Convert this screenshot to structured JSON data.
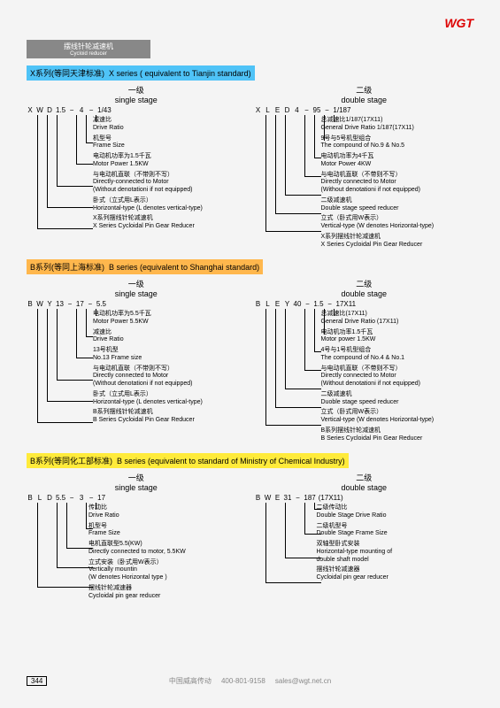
{
  "logo": "WGT",
  "header": {
    "cn": "摆线针轮减速机",
    "en": "Cycloid reducer"
  },
  "sections": [
    {
      "title_cn": "X系列(等同天津标准)",
      "title_en": "X series ( equivalent to Tianjin standard)",
      "bg": "bg-blue",
      "cols": [
        {
          "stage_cn": "一级",
          "stage_en": "single stage",
          "code": [
            "X",
            "W",
            "D",
            "1.5",
            "−",
            "4",
            "−",
            "1/43"
          ],
          "items": [
            {
              "cn": "减速比",
              "en": "Drive Ratio"
            },
            {
              "cn": "机型号",
              "en": "Frame Size"
            },
            {
              "cn": "电动机功率为1.5千瓦",
              "en": "Motor Power 1.5KW"
            },
            {
              "cn": "与电动机直联（不带则不写）",
              "en": "Directly-connected to Motor\n(Without denotationi if not equipped)"
            },
            {
              "cn": "卧式（立式用L表示）",
              "en": "Horizontal-type (L denotes vertical-type)"
            },
            {
              "cn": "X系列摆线针轮减速机",
              "en": "X Series Cycloidal Pin Gear Reducer"
            }
          ]
        },
        {
          "stage_cn": "二级",
          "stage_en": "double stage",
          "code": [
            "X",
            "L",
            "E",
            "D",
            "4",
            "−",
            "95",
            "−",
            "1/187"
          ],
          "items": [
            {
              "cn": "总减速比1/187(17X11)",
              "en": "General Drive Ratio 1/187(17X11)"
            },
            {
              "cn": "9号与5号机型组合",
              "en": "The compound of No.9 & No.5"
            },
            {
              "cn": "电动机功率为4千瓦",
              "en": "Motor Power 4KW"
            },
            {
              "cn": "与电动机直联（不带则不写）",
              "en": "Directly connected to Motor\n(Without denotationi if not equipped)"
            },
            {
              "cn": "二级减速机",
              "en": "Double stage speed reducer"
            },
            {
              "cn": "立式（卧式用W表示）",
              "en": "Vertical-type (W denotes Horizontal-type)"
            },
            {
              "cn": "X系列摆线针轮减速机",
              "en": "X Series Cycloidal Pin Gear Reducer"
            }
          ]
        }
      ]
    },
    {
      "title_cn": "B系列(等同上海标准)",
      "title_en": "B series (equivalent to Shanghai standard)",
      "bg": "bg-orange",
      "cols": [
        {
          "stage_cn": "一级",
          "stage_en": "single stage",
          "code": [
            "B",
            "W",
            "Y",
            "13",
            "−",
            "17",
            "−",
            "5.5"
          ],
          "items": [
            {
              "cn": "电动机功率为5.5千瓦",
              "en": "Motor Power 5.5KW"
            },
            {
              "cn": "减速比",
              "en": "Drive Ratio"
            },
            {
              "cn": "13号机型",
              "en": "No.13 Frame size"
            },
            {
              "cn": "与电动机直联（不带则不写）",
              "en": "Directly connected to Motor\n(Without denotationi if not equipped)"
            },
            {
              "cn": "卧式（立式用L表示）",
              "en": "Horizontal-type (L denotes vertical-type)"
            },
            {
              "cn": "B系列摆线针轮减速机",
              "en": "B Series Cycloidal Pin Gear Reducer"
            }
          ]
        },
        {
          "stage_cn": "二级",
          "stage_en": "double stage",
          "code": [
            "B",
            "L",
            "E",
            "Y",
            "40",
            "−",
            "1.5",
            "−",
            "17X11"
          ],
          "items": [
            {
              "cn": "总减速比(17X11)",
              "en": "General Drive Ratio (17X11)"
            },
            {
              "cn": "电动机功率1.5千瓦",
              "en": "Motor power 1.5KW"
            },
            {
              "cn": "4号与1号机型组合",
              "en": "The compound of No.4 & No.1"
            },
            {
              "cn": "与电动机直联（不带则不写）",
              "en": "Directly connected to Motor\n(Without denotationi if not equipped)"
            },
            {
              "cn": "二级减速机",
              "en": "Duoble stage speed reducer"
            },
            {
              "cn": "立式（卧式用W表示）",
              "en": "Vertical-type (W denotes Horizontal-type)"
            },
            {
              "cn": "B系列摆线针轮减速机",
              "en": "B Series Cycloidal Pin Gear Reducer"
            }
          ]
        }
      ]
    },
    {
      "title_cn": "B系列(等同化工部标准)",
      "title_en": "B series (equivalent to standard of Ministry of Chemical Industry)",
      "bg": "bg-yellow",
      "cols": [
        {
          "stage_cn": "一级",
          "stage_en": "single stage",
          "code": [
            "B",
            "L",
            "D",
            "5.5",
            "−",
            "3",
            "−",
            "17"
          ],
          "items": [
            {
              "cn": "传动比",
              "en": "Drive Ratio"
            },
            {
              "cn": "机型号",
              "en": "Frame Size"
            },
            {
              "cn": "电机直联型5.5(KW)",
              "en": "Directly connected to motor, 5.5KW"
            },
            {
              "cn": "立式安装（卧式用W表示）",
              "en": "Vertically mountin\n(W denotes Horizontal type )"
            },
            {
              "cn": "摆线针轮减速器",
              "en": "Cycloidal pin gear reducer"
            }
          ]
        },
        {
          "stage_cn": "二级",
          "stage_en": "double stage",
          "code": [
            "B",
            "W",
            "E",
            "31",
            "−",
            "187",
            "(17X11)"
          ],
          "items": [
            {
              "cn": "二级传动比",
              "en": "Double Stage Drive Ratio"
            },
            {
              "cn": "二级机型号",
              "en": "Double Stage Frame Size"
            },
            {
              "cn": "双轴型卧式安装",
              "en": "Horizontal-type mounting of\ndouble shaft model"
            },
            {
              "cn": "摆线针轮减速器",
              "en": "Cycloidal pin gear reducer"
            }
          ]
        }
      ]
    }
  ],
  "page": "344",
  "footer": {
    "company": "中国威高传动",
    "phone": "400-801-9158",
    "email": "sales@wgt.net.cn"
  }
}
